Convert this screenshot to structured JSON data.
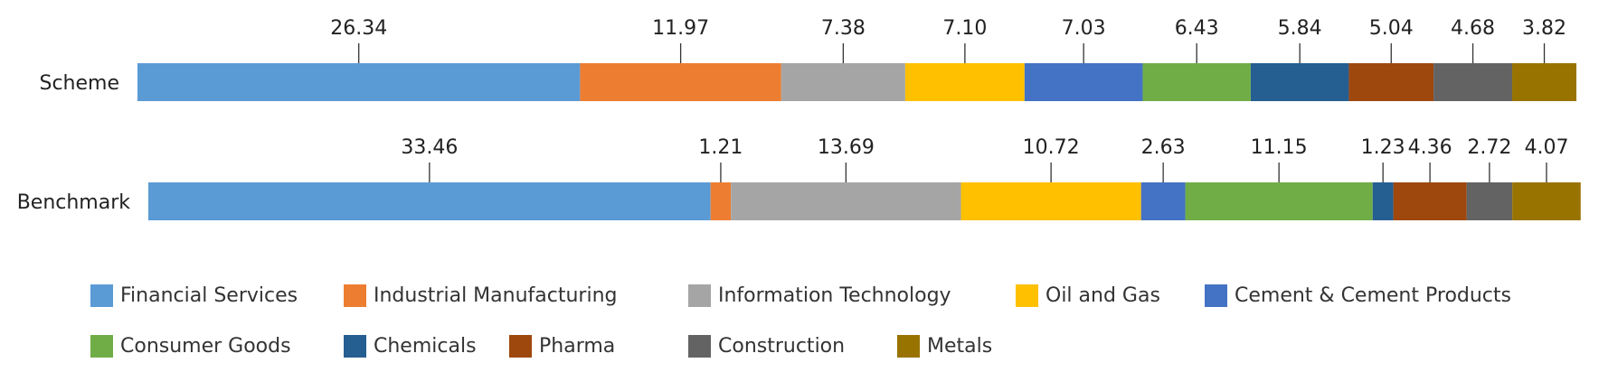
{
  "chart_data": {
    "type": "bar",
    "orientation": "horizontal",
    "stacked": true,
    "categories": [
      "Scheme",
      "Benchmark"
    ],
    "series": [
      {
        "name": "Financial Services",
        "color": "#5B9BD5",
        "values": [
          26.34,
          33.46
        ]
      },
      {
        "name": "Industrial Manufacturing",
        "color": "#ED7D31",
        "values": [
          11.97,
          1.21
        ]
      },
      {
        "name": "Information Technology",
        "color": "#A5A5A5",
        "values": [
          7.38,
          13.69
        ]
      },
      {
        "name": "Oil and Gas",
        "color": "#FFC000",
        "values": [
          7.1,
          10.72
        ]
      },
      {
        "name": "Cement & Cement Products",
        "color": "#4472C4",
        "values": [
          7.03,
          2.63
        ]
      },
      {
        "name": "Consumer Goods",
        "color": "#70AD47",
        "values": [
          6.43,
          11.15
        ]
      },
      {
        "name": "Chemicals",
        "color": "#255E91",
        "values": [
          5.84,
          1.23
        ]
      },
      {
        "name": "Pharma",
        "color": "#9E480E",
        "values": [
          5.04,
          4.36
        ]
      },
      {
        "name": "Construction",
        "color": "#636363",
        "values": [
          4.68,
          2.72
        ]
      },
      {
        "name": "Metals",
        "color": "#997300",
        "values": [
          3.82,
          4.07
        ]
      }
    ],
    "data_labels": true,
    "grid": false,
    "legend": "bottom"
  }
}
